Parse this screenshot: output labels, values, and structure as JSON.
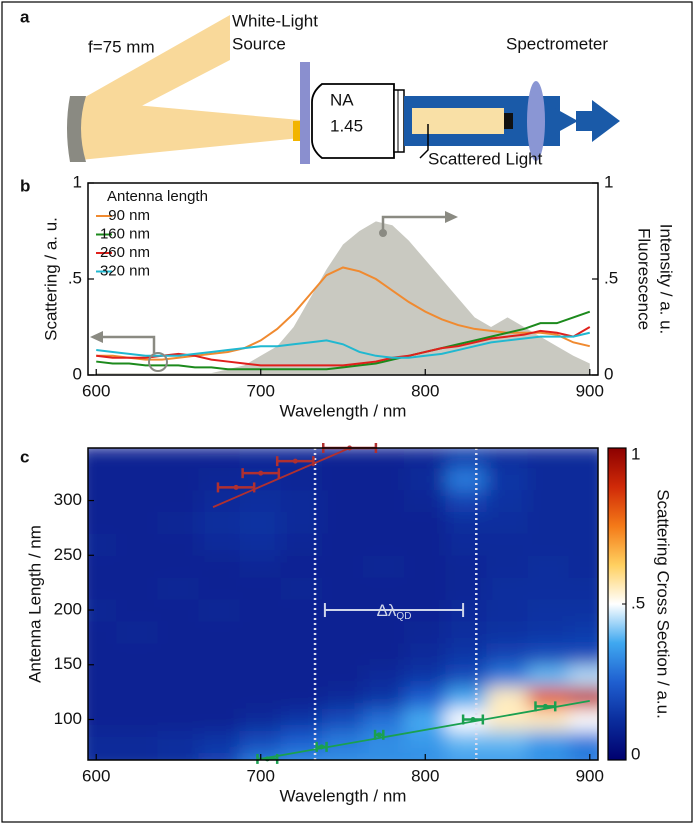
{
  "diagram": {
    "label": "a",
    "lens": "f=75 mm",
    "source": [
      "White-Light",
      "Source"
    ],
    "objective": [
      "NA",
      "1.45"
    ],
    "detector": "Spectrometer",
    "beam": "Scattered Light"
  },
  "chart_data": [
    {
      "type": "line",
      "label": "b",
      "x": [
        600,
        610,
        620,
        630,
        640,
        650,
        660,
        670,
        680,
        690,
        700,
        710,
        720,
        730,
        740,
        750,
        760,
        770,
        780,
        790,
        800,
        810,
        820,
        830,
        840,
        850,
        860,
        870,
        880,
        890,
        900
      ],
      "xlim": [
        595,
        905
      ],
      "xticks": [
        600,
        700,
        800,
        900
      ],
      "ylim": [
        0,
        1
      ],
      "yticks": [
        0,
        {
          "value": 0.5,
          "label": ".5"
        },
        1
      ],
      "y2lim": [
        0,
        1
      ],
      "y2ticks": [
        0,
        {
          "value": 0.5,
          "label": ".5"
        },
        1
      ],
      "xlabel": "Wavelength / nm",
      "ylabel": "Scattering / a. u.",
      "y2label": [
        "Fluorescence",
        "Intensity / a. u."
      ],
      "legend_title": "Antenna length",
      "area": {
        "axis": "y2",
        "color": "#c9c9c1",
        "values": [
          0.01,
          0.01,
          0.01,
          0.01,
          0.01,
          0.01,
          0.01,
          0.01,
          0.03,
          0.05,
          0.1,
          0.15,
          0.25,
          0.4,
          0.55,
          0.68,
          0.75,
          0.8,
          0.78,
          0.7,
          0.6,
          0.5,
          0.4,
          0.3,
          0.25,
          0.3,
          0.25,
          0.2,
          0.15,
          0.1,
          0.06
        ]
      },
      "series": [
        {
          "name": "90 nm",
          "color": "#f08a30",
          "values": [
            0.1,
            0.1,
            0.09,
            0.08,
            0.08,
            0.09,
            0.1,
            0.11,
            0.12,
            0.14,
            0.18,
            0.24,
            0.32,
            0.42,
            0.52,
            0.56,
            0.54,
            0.5,
            0.44,
            0.38,
            0.33,
            0.29,
            0.26,
            0.24,
            0.23,
            0.22,
            0.22,
            0.22,
            0.21,
            0.17,
            0.15
          ]
        },
        {
          "name": "160 nm",
          "color": "#1c8a1c",
          "values": [
            0.07,
            0.06,
            0.06,
            0.05,
            0.05,
            0.05,
            0.04,
            0.04,
            0.03,
            0.03,
            0.03,
            0.03,
            0.03,
            0.03,
            0.03,
            0.04,
            0.05,
            0.06,
            0.08,
            0.1,
            0.12,
            0.14,
            0.16,
            0.18,
            0.2,
            0.22,
            0.24,
            0.27,
            0.27,
            0.3,
            0.33
          ]
        },
        {
          "name": "260 nm",
          "color": "#e0201c",
          "values": [
            0.1,
            0.09,
            0.09,
            0.09,
            0.1,
            0.11,
            0.1,
            0.08,
            0.07,
            0.06,
            0.05,
            0.05,
            0.05,
            0.05,
            0.05,
            0.05,
            0.06,
            0.07,
            0.09,
            0.1,
            0.12,
            0.14,
            0.15,
            0.17,
            0.19,
            0.2,
            0.21,
            0.23,
            0.22,
            0.2,
            0.25
          ]
        },
        {
          "name": "320 nm",
          "color": "#20b8d0",
          "values": [
            0.13,
            0.12,
            0.11,
            0.1,
            0.1,
            0.1,
            0.11,
            0.12,
            0.13,
            0.14,
            0.15,
            0.15,
            0.16,
            0.17,
            0.18,
            0.16,
            0.12,
            0.1,
            0.09,
            0.09,
            0.1,
            0.11,
            0.13,
            0.15,
            0.17,
            0.18,
            0.19,
            0.2,
            0.2,
            0.2,
            0.22
          ]
        }
      ]
    },
    {
      "type": "heatmap",
      "label": "c",
      "xlim": [
        595,
        905
      ],
      "xticks": [
        600,
        700,
        800,
        900
      ],
      "ylim": [
        63,
        348
      ],
      "yticks": [
        100,
        150,
        200,
        250,
        300
      ],
      "xlabel": "Wavelength / nm",
      "ylabel": "Antenna Length / nm",
      "x": [
        600,
        625,
        650,
        675,
        700,
        725,
        750,
        775,
        800,
        825,
        850,
        875,
        900
      ],
      "y": [
        60,
        80,
        100,
        120,
        140,
        160,
        180,
        200,
        220,
        240,
        260,
        280,
        300,
        320,
        340
      ],
      "z": [
        [
          0.12,
          0.12,
          0.13,
          0.18,
          0.3,
          0.33,
          0.33,
          0.33,
          0.33,
          0.35,
          0.35,
          0.33,
          0.3
        ],
        [
          0.12,
          0.12,
          0.13,
          0.15,
          0.2,
          0.25,
          0.3,
          0.33,
          0.35,
          0.4,
          0.4,
          0.35,
          0.3
        ],
        [
          0.1,
          0.1,
          0.1,
          0.1,
          0.12,
          0.15,
          0.2,
          0.28,
          0.38,
          0.5,
          0.55,
          0.55,
          0.5
        ],
        [
          0.1,
          0.1,
          0.1,
          0.1,
          0.1,
          0.1,
          0.12,
          0.15,
          0.25,
          0.38,
          0.55,
          0.8,
          0.9
        ],
        [
          0.1,
          0.1,
          0.1,
          0.1,
          0.1,
          0.1,
          0.1,
          0.12,
          0.15,
          0.2,
          0.3,
          0.4,
          0.45
        ],
        [
          0.1,
          0.1,
          0.1,
          0.1,
          0.1,
          0.1,
          0.1,
          0.1,
          0.12,
          0.15,
          0.18,
          0.2,
          0.2
        ],
        [
          0.1,
          0.11,
          0.1,
          0.1,
          0.1,
          0.1,
          0.1,
          0.1,
          0.11,
          0.13,
          0.14,
          0.15,
          0.16
        ],
        [
          0.11,
          0.1,
          0.1,
          0.11,
          0.1,
          0.1,
          0.1,
          0.1,
          0.1,
          0.12,
          0.13,
          0.14,
          0.14
        ],
        [
          0.1,
          0.1,
          0.11,
          0.1,
          0.1,
          0.11,
          0.1,
          0.1,
          0.1,
          0.11,
          0.13,
          0.13,
          0.13
        ],
        [
          0.1,
          0.1,
          0.1,
          0.1,
          0.11,
          0.1,
          0.1,
          0.11,
          0.1,
          0.11,
          0.12,
          0.13,
          0.12
        ],
        [
          0.11,
          0.1,
          0.1,
          0.12,
          0.13,
          0.11,
          0.1,
          0.1,
          0.1,
          0.12,
          0.12,
          0.12,
          0.12
        ],
        [
          0.1,
          0.1,
          0.11,
          0.13,
          0.14,
          0.12,
          0.1,
          0.1,
          0.1,
          0.13,
          0.13,
          0.12,
          0.12
        ],
        [
          0.1,
          0.1,
          0.1,
          0.12,
          0.13,
          0.12,
          0.1,
          0.1,
          0.11,
          0.18,
          0.14,
          0.12,
          0.12
        ],
        [
          0.1,
          0.1,
          0.1,
          0.11,
          0.12,
          0.11,
          0.1,
          0.1,
          0.12,
          0.3,
          0.15,
          0.12,
          0.12
        ],
        [
          0.1,
          0.1,
          0.1,
          0.1,
          0.11,
          0.11,
          0.1,
          0.1,
          0.11,
          0.16,
          0.13,
          0.12,
          0.12
        ]
      ],
      "zlim": [
        0,
        1
      ],
      "zticks": [
        0,
        {
          "value": 0.5,
          "label": ".5"
        },
        1
      ],
      "zlabel": "Scattering Cross Section / a.u.",
      "colormap": [
        "#00006e",
        "#0a2c9c",
        "#1f5fd0",
        "#3fa8f0",
        "#ffffff",
        "#ffd060",
        "#f47a18",
        "#d02a08",
        "#8c0000"
      ],
      "guides": [
        733,
        831
      ],
      "annotation": {
        "text": "Δλ",
        "subscript": "QD",
        "x": [
          739,
          823
        ],
        "y": 200
      },
      "points": [
        {
          "color": "#b03030",
          "x": [
            685,
            700,
            721,
            754
          ],
          "xerr": [
            11,
            11,
            11,
            16
          ],
          "y": [
            312,
            325,
            336,
            348
          ]
        },
        {
          "color": "#1aa050",
          "x": [
            704,
            737,
            772,
            829,
            873
          ],
          "xerr": [
            6,
            3,
            2.5,
            6,
            6
          ],
          "y": [
            64,
            75,
            86,
            100,
            112
          ]
        }
      ],
      "fits": [
        {
          "color": "#b03030",
          "x": [
            671,
            754
          ],
          "y": [
            294,
            348
          ]
        },
        {
          "color": "#1aa050",
          "x": [
            700,
            900
          ],
          "y": [
            64,
            117
          ]
        }
      ]
    }
  ]
}
